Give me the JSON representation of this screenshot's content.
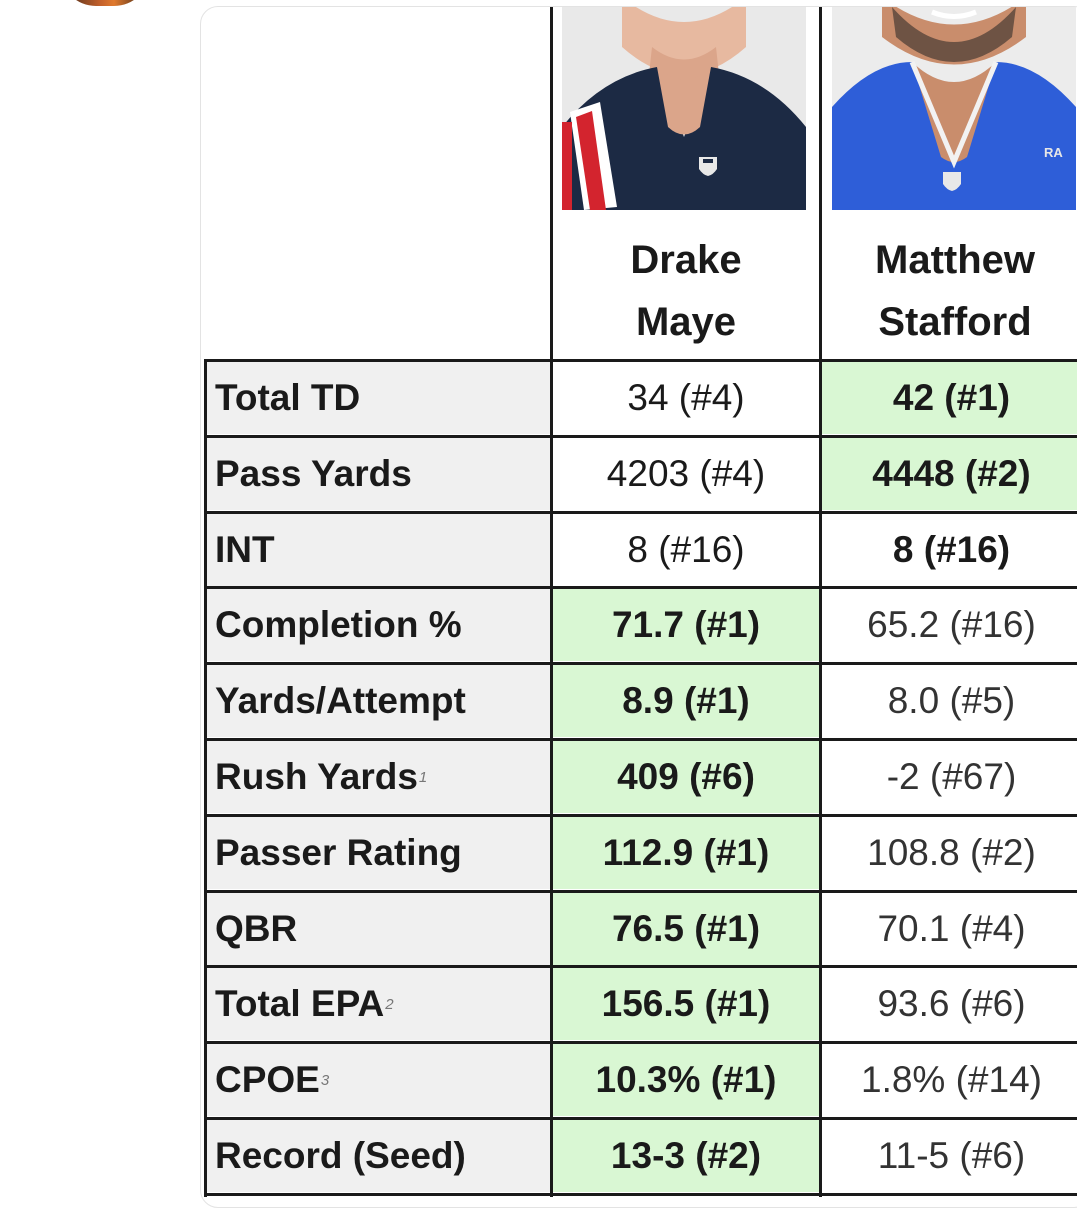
{
  "players": [
    {
      "name": "Drake\nMaye",
      "photo_desc": "navy jersey with red and white shoulder stripe"
    },
    {
      "name": "Matthew\nStafford",
      "photo_desc": "royal blue jersey"
    }
  ],
  "photo_text": {
    "stafford_jersey": "RA"
  },
  "colors": {
    "best": "#d9f7d3",
    "label_bg": "#f0f0f0",
    "grid": "#1a1a1a",
    "maye_jersey": "#1c2a44",
    "stafford_jersey": "#2e5ed8"
  },
  "rows": [
    {
      "label": "Total TD",
      "footnote": "",
      "maye": "34 (#4)",
      "stafford": "42 (#1)",
      "best": "stafford"
    },
    {
      "label": "Pass Yards",
      "footnote": "",
      "maye": "4203 (#4)",
      "stafford": "4448 (#2)",
      "best": "stafford"
    },
    {
      "label": "INT",
      "footnote": "",
      "maye": "8 (#16)",
      "stafford": "8 (#16)",
      "best": "stafford_bold_only"
    },
    {
      "label": "Completion %",
      "footnote": "",
      "maye": "71.7 (#1)",
      "stafford": "65.2 (#16)",
      "best": "maye"
    },
    {
      "label": "Yards/Attempt",
      "footnote": "",
      "maye": "8.9 (#1)",
      "stafford": "8.0 (#5)",
      "best": "maye"
    },
    {
      "label": "Rush Yards",
      "footnote": "1",
      "maye": "409 (#6)",
      "stafford": "-2 (#67)",
      "best": "maye"
    },
    {
      "label": "Passer Rating",
      "footnote": "",
      "maye": "112.9 (#1)",
      "stafford": "108.8 (#2)",
      "best": "maye"
    },
    {
      "label": "QBR",
      "footnote": "",
      "maye": "76.5 (#1)",
      "stafford": "70.1 (#4)",
      "best": "maye"
    },
    {
      "label": "Total EPA",
      "footnote": "2",
      "maye": "156.5 (#1)",
      "stafford": "93.6 (#6)",
      "best": "maye"
    },
    {
      "label": "CPOE",
      "footnote": "3",
      "maye": "10.3% (#1)",
      "stafford": "1.8% (#14)",
      "best": "maye"
    },
    {
      "label": "Record (Seed)",
      "footnote": "",
      "maye": "13-3 (#2)",
      "stafford": "11-5 (#6)",
      "best": "maye"
    }
  ]
}
